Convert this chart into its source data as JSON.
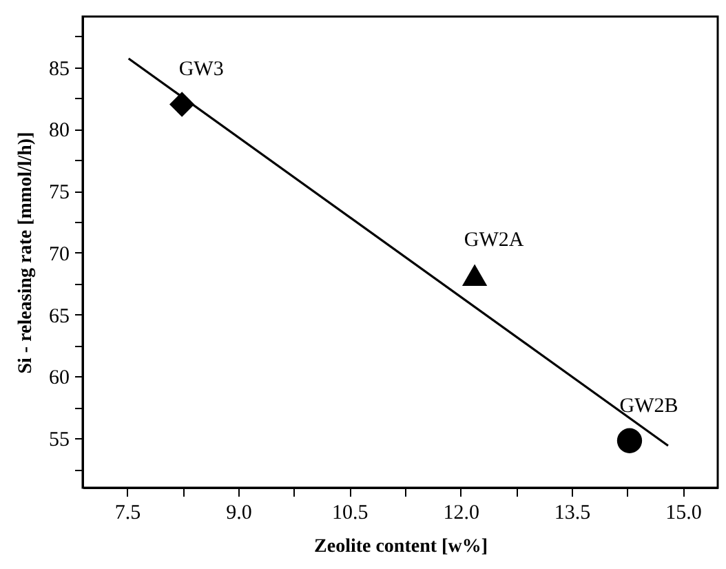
{
  "chart_data": {
    "type": "scatter",
    "xlabel": "Zeolite content [w%]",
    "ylabel": "Si - releasing rate [mmol/l/h)]",
    "xlim": [
      6.9,
      15.47
    ],
    "ylim": [
      51.0,
      89.1
    ],
    "xticks": [
      7.5,
      {
        "value": 8.25,
        "label": null
      },
      {
        "value": 9,
        "label": "9.0"
      },
      {
        "value": 9.75,
        "label": null
      },
      10.5,
      {
        "value": 11.25,
        "label": null
      },
      {
        "value": 12,
        "label": "12.0"
      },
      {
        "value": 12.75,
        "label": null
      },
      13.5,
      {
        "value": 14.25,
        "label": null
      },
      {
        "value": 15,
        "label": "15.0"
      }
    ],
    "yticks": [
      {
        "value": 52.5,
        "label": null
      },
      55,
      {
        "value": 57.5,
        "label": null
      },
      60,
      {
        "value": 62.5,
        "label": null
      },
      65,
      {
        "value": 67.5,
        "label": null
      },
      70,
      {
        "value": 72.5,
        "label": null
      },
      75,
      {
        "value": 77.5,
        "label": null
      },
      80,
      {
        "value": 82.5,
        "label": null
      },
      85,
      {
        "value": 87.5,
        "label": null
      }
    ],
    "grid": false,
    "series": [
      {
        "marker": "diamond",
        "color": "#000000",
        "x": [
          8.24
        ],
        "values": [
          82.0
        ]
      },
      {
        "marker": "triangle",
        "color": "#000000",
        "x": [
          12.19
        ],
        "values": [
          68.2
        ]
      },
      {
        "marker": "circle",
        "color": "#000000",
        "x": [
          14.28
        ],
        "values": [
          54.8
        ]
      },
      {
        "type": "line",
        "marker": "none",
        "line_style": "solid",
        "color": "#000000",
        "x": [
          7.52,
          14.8
        ],
        "values": [
          85.7,
          54.4
        ]
      }
    ],
    "annotations": [
      {
        "text": "GW3",
        "x": 8.24,
        "y": 82.0
      },
      {
        "text": "GW2A",
        "x": 12.19,
        "y": 68.2
      },
      {
        "text": "GW2B",
        "x": 14.28,
        "y": 54.8
      }
    ]
  }
}
